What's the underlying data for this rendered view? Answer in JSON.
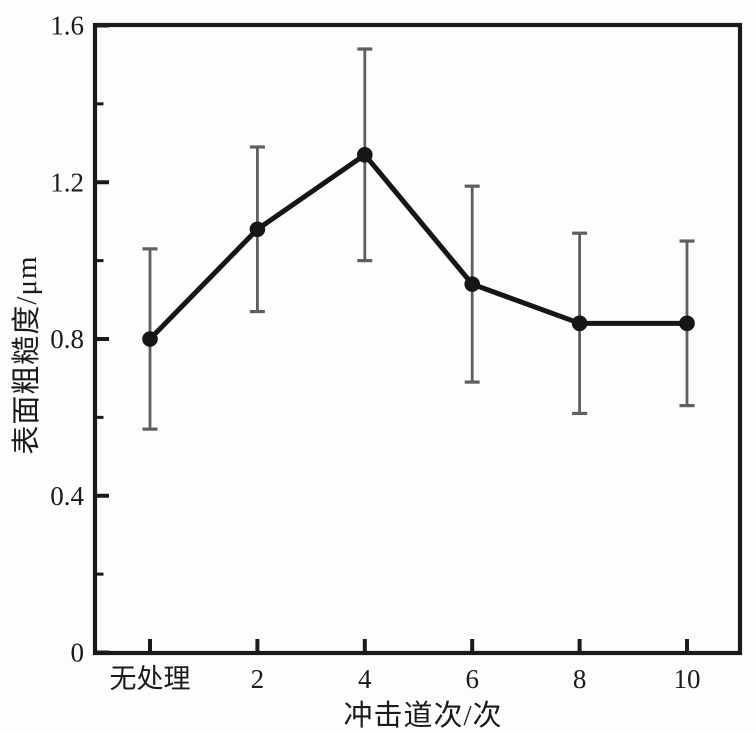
{
  "figure": {
    "background": "#fdfdfd"
  },
  "chart_data": {
    "type": "line",
    "title": "",
    "xlabel": "冲击道次/次",
    "ylabel": "表面粗糙度/μm",
    "categories": [
      "无处理",
      "2",
      "4",
      "6",
      "8",
      "10"
    ],
    "series": [
      {
        "name": "表面粗糙度",
        "values": [
          0.8,
          1.08,
          1.27,
          0.94,
          0.84,
          0.84
        ],
        "errors": [
          0.23,
          0.21,
          0.27,
          0.25,
          0.23,
          0.21
        ]
      }
    ],
    "ylim": [
      0,
      1.6
    ],
    "yticks": [
      0,
      0.4,
      0.8,
      1.2,
      1.6
    ],
    "ytick_labels": [
      "0",
      "0.4",
      "0.8",
      "1.2",
      "1.6"
    ],
    "yminor_step": 0.2,
    "grid": false,
    "legend": false,
    "marker": "circle",
    "error_bar_caps": true,
    "colors": {
      "line": "#161616",
      "marker": "#161616",
      "error_bar": "#5f5f5f",
      "axis": "#1a1a1a",
      "text": "#1a1a1a"
    }
  }
}
